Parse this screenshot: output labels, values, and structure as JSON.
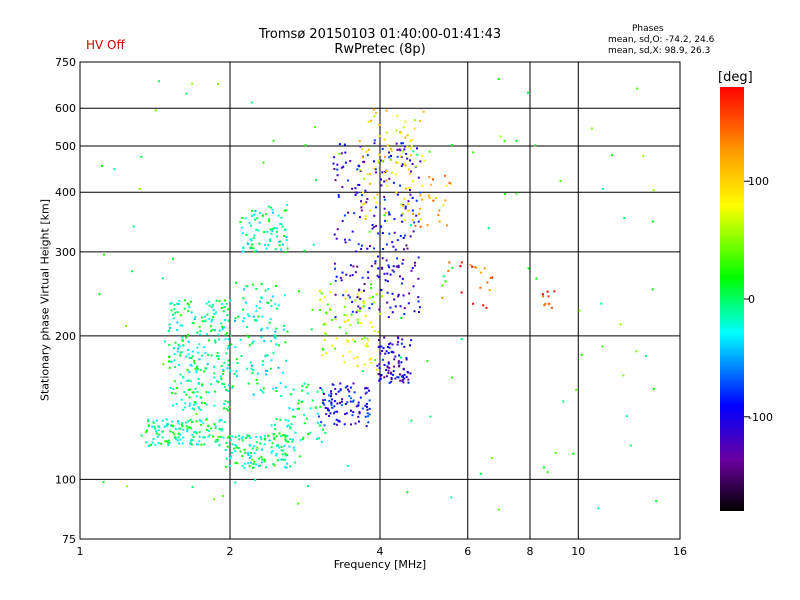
{
  "status_label": "HV Off",
  "title_line1": "Tromsø 20150103 01:40:00-01:41:43",
  "title_line2": "RwPretec (8p)",
  "phases": {
    "heading": "Phases",
    "line_o": "mean, sd,O: -74.2, 24.6",
    "line_x": "mean, sd,X:  98.9, 26.3"
  },
  "colorbar": {
    "unit": "[deg]",
    "ticks": [
      100,
      0,
      -100
    ],
    "range": [
      -180,
      180
    ]
  },
  "chart_data": {
    "type": "scatter",
    "title": "Tromsø 20150103 01:40:00-01:41:43",
    "subtitle": "RwPretec (8p)",
    "xlabel": "Frequency [MHz]",
    "ylabel": "Stationary phase Virtual Height [km]",
    "x_scale": "log",
    "y_scale": "log",
    "xlim": [
      1,
      16
    ],
    "ylim": [
      75,
      750
    ],
    "x_ticks": [
      1,
      2,
      4,
      6,
      8,
      10,
      16
    ],
    "y_ticks": [
      75,
      100,
      200,
      300,
      400,
      500,
      600,
      750
    ],
    "x_gridlines": [
      2,
      4,
      6,
      8,
      10
    ],
    "y_gridlines": [
      100,
      200,
      300,
      400,
      500,
      600
    ],
    "grid": true,
    "color_scale": "rainbow (black-purple-blue-cyan-green-yellow-orange-red)",
    "clusters": [
      {
        "fmin": 1.35,
        "fmax": 1.95,
        "hmin": 118,
        "hmax": 135,
        "phase": -5,
        "count": 140
      },
      {
        "fmin": 1.5,
        "fmax": 2.0,
        "hmin": 140,
        "hmax": 240,
        "phase": -10,
        "count": 240
      },
      {
        "fmin": 1.95,
        "fmax": 2.7,
        "hmin": 106,
        "hmax": 125,
        "phase": -8,
        "count": 130
      },
      {
        "fmin": 2.0,
        "fmax": 2.6,
        "hmin": 150,
        "hmax": 260,
        "phase": -15,
        "count": 110
      },
      {
        "fmin": 2.1,
        "fmax": 2.6,
        "hmin": 300,
        "hmax": 380,
        "phase": -12,
        "count": 80
      },
      {
        "fmin": 2.4,
        "fmax": 3.1,
        "hmin": 120,
        "hmax": 160,
        "phase": -5,
        "count": 60
      },
      {
        "fmin": 3.0,
        "fmax": 3.8,
        "hmin": 130,
        "hmax": 160,
        "phase": -95,
        "count": 100
      },
      {
        "fmin": 3.0,
        "fmax": 4.0,
        "hmin": 170,
        "hmax": 260,
        "phase": 60,
        "count": 90
      },
      {
        "fmin": 3.2,
        "fmax": 4.8,
        "hmin": 220,
        "hmax": 520,
        "phase": -105,
        "count": 250
      },
      {
        "fmin": 3.6,
        "fmax": 4.9,
        "hmin": 350,
        "hmax": 600,
        "phase": 90,
        "count": 90
      },
      {
        "fmin": 3.9,
        "fmax": 4.6,
        "hmin": 160,
        "hmax": 200,
        "phase": -110,
        "count": 90
      },
      {
        "fmin": 4.6,
        "fmax": 5.6,
        "hmin": 340,
        "hmax": 440,
        "phase": 120,
        "count": 25
      },
      {
        "fmin": 5.3,
        "fmax": 6.7,
        "hmin": 230,
        "hmax": 290,
        "phase": 150,
        "count": 20
      },
      {
        "fmin": 8.4,
        "fmax": 9.0,
        "hmin": 230,
        "hmax": 250,
        "phase": 165,
        "count": 10
      },
      {
        "fmin": 1.05,
        "fmax": 15.0,
        "hmin": 80,
        "hmax": 700,
        "phase": 20,
        "count": 120
      }
    ]
  }
}
